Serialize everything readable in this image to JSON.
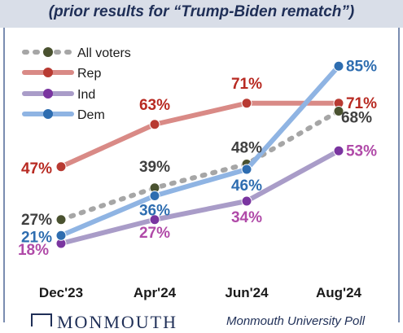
{
  "subtitle": "(prior results for “Trump-Biden rematch”)",
  "footer": {
    "logo_text": "MONMOUTH",
    "source": "Monmouth University Poll"
  },
  "colors": {
    "all_voters": "#a6a6a6",
    "all_voters_marker": "#4a5230",
    "rep": "#d98a86",
    "rep_marker": "#b83a32",
    "rep_label": "#b82a22",
    "ind": "#a99cc8",
    "ind_marker": "#7a35a0",
    "ind_label": "#b04aa8",
    "dem": "#8fb4e3",
    "dem_marker": "#2e6db0",
    "dem_label": "#2e6db0",
    "all_label": "#404040"
  },
  "chart_data": {
    "type": "line",
    "categories": [
      "Dec'23",
      "Apr'24",
      "Jun'24",
      "Aug'24"
    ],
    "ylim": [
      10,
      90
    ],
    "legend_position": "top-left",
    "series": [
      {
        "key": "all",
        "name": "All voters",
        "values": [
          27,
          39,
          48,
          68
        ],
        "labels": [
          "27%",
          "39%",
          "48%",
          "68%"
        ]
      },
      {
        "key": "rep",
        "name": "Rep",
        "values": [
          47,
          63,
          71,
          71
        ],
        "labels": [
          "47%",
          "63%",
          "71%",
          "71%"
        ]
      },
      {
        "key": "ind",
        "name": "Ind",
        "values": [
          18,
          27,
          34,
          53
        ],
        "labels": [
          "18%",
          "27%",
          "34%",
          "53%"
        ]
      },
      {
        "key": "dem",
        "name": "Dem",
        "values": [
          21,
          36,
          46,
          85
        ],
        "labels": [
          "21%",
          "36%",
          "46%",
          "85%"
        ]
      }
    ]
  }
}
